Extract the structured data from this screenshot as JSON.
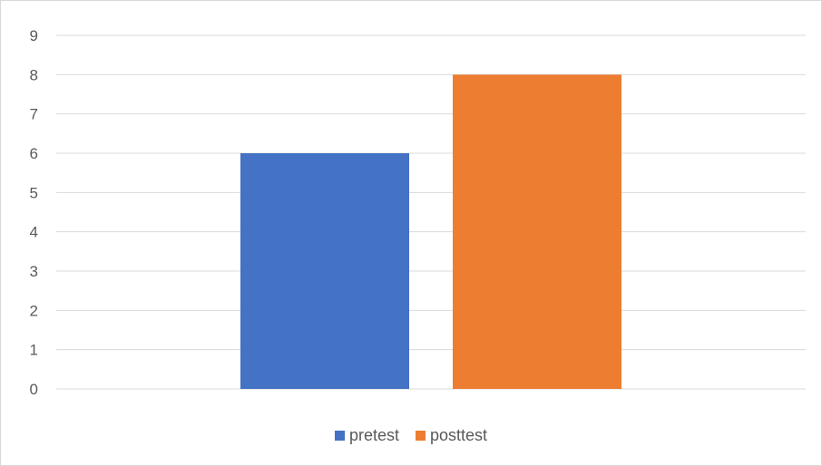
{
  "chart_data": {
    "type": "bar",
    "categories": [
      ""
    ],
    "series": [
      {
        "name": "pretest",
        "values": [
          6
        ],
        "color": "#4472C4"
      },
      {
        "name": "posttest",
        "values": [
          8
        ],
        "color": "#ED7D31"
      }
    ],
    "ylim": [
      0,
      9
    ],
    "yticks": [
      0,
      1,
      2,
      3,
      4,
      5,
      6,
      7,
      8,
      9
    ],
    "grid": true,
    "legend_position": "bottom"
  },
  "colors": {
    "gridline": "#d9d9d9",
    "text": "#595959"
  }
}
